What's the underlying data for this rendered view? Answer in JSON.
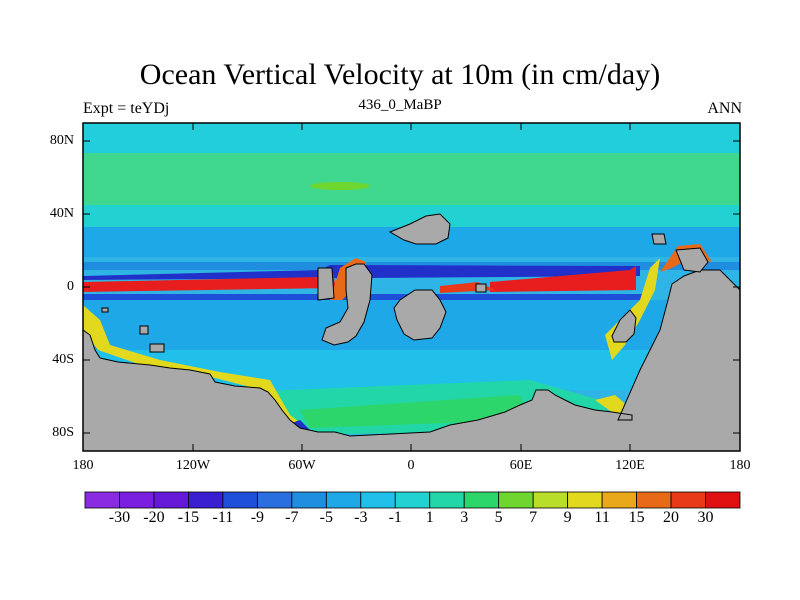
{
  "title": "Ocean Vertical Velocity at 10m (in cm/day)",
  "left_subtitle": "Expt = teYDj",
  "center_subtitle": "436_0_MaBP",
  "right_subtitle": "ANN",
  "x_ticks": [
    "180",
    "120W",
    "60W",
    "0",
    "60E",
    "120E",
    "180"
  ],
  "y_ticks": [
    "80N",
    "40N",
    "0",
    "40S",
    "80S"
  ],
  "colorbar": {
    "labels": [
      "-30",
      "-20",
      "-15",
      "-11",
      "-9",
      "-7",
      "-5",
      "-3",
      "-1",
      "1",
      "3",
      "5",
      "7",
      "9",
      "11",
      "15",
      "20",
      "30"
    ],
    "colors": [
      "#8a2be2",
      "#7a1fe0",
      "#6418d8",
      "#3a1fd0",
      "#1e4fd8",
      "#2a6fe0",
      "#1f8ee0",
      "#1ea8e8",
      "#20c0ea",
      "#22d2d2",
      "#22d6a8",
      "#2dd66a",
      "#6fd630",
      "#b8de2a",
      "#e2d81e",
      "#e8a81a",
      "#e86a18",
      "#e83a18",
      "#e01010"
    ]
  },
  "colors": {
    "land": "#a9a9a9",
    "ocean_background": "#2fb4e6",
    "polar_band": "#22cddc",
    "mid_latitude_band": "#3fd88e",
    "equatorial_upwelling": "#e81e1e",
    "equatorial_downwelling": "#2030c8",
    "coastal_upwelling": "#e8d01a"
  }
}
